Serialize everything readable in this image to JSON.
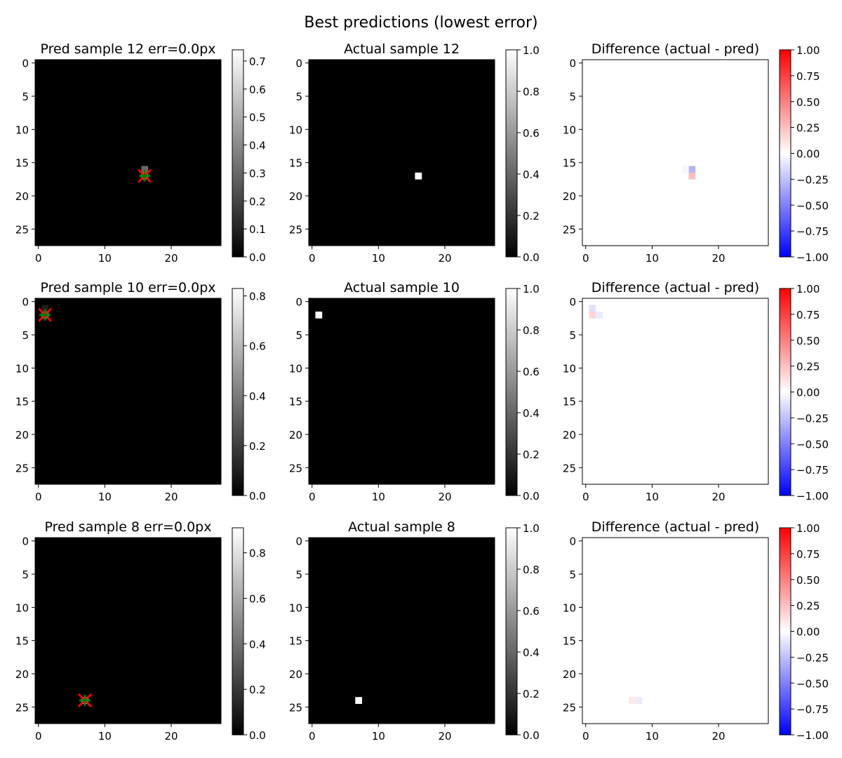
{
  "figure": {
    "suptitle": "Best predictions (lowest error)"
  },
  "colors": {
    "background": "#000000",
    "pixel": "#ffffff",
    "pred_marker": "#ff0000",
    "actual_marker": "#008000",
    "axis": "#000000"
  },
  "chart_data": [
    {
      "type": "heatmap",
      "title": "Pred sample 12  err=0.0px",
      "colormap": "gray",
      "xticks": [
        0,
        10,
        20
      ],
      "yticks": [
        0,
        5,
        10,
        15,
        20,
        25
      ],
      "colorbar": {
        "range": [
          0,
          0.74
        ],
        "ticks": [
          "0.0",
          "0.1",
          "0.2",
          "0.3",
          "0.4",
          "0.5",
          "0.6",
          "0.7"
        ]
      },
      "cells": [
        {
          "x": 16,
          "y": 16,
          "v": 0.3
        },
        {
          "x": 16,
          "y": 17,
          "v": 0.74
        }
      ],
      "markers": [
        {
          "kind": "pred",
          "shape": "x",
          "x": 16,
          "y": 17
        },
        {
          "kind": "actual",
          "shape": "+",
          "x": 16,
          "y": 17
        }
      ]
    },
    {
      "type": "heatmap",
      "title": "Actual sample 12",
      "colormap": "gray",
      "xticks": [
        0,
        10,
        20
      ],
      "yticks": [
        0,
        5,
        10,
        15,
        20,
        25
      ],
      "colorbar": {
        "range": [
          0,
          1
        ],
        "ticks": [
          "0.0",
          "0.2",
          "0.4",
          "0.6",
          "0.8",
          "1.0"
        ]
      },
      "cells": [
        {
          "x": 16,
          "y": 17,
          "v": 1.0
        }
      ],
      "markers": []
    },
    {
      "type": "heatmap",
      "title": "Difference (actual - pred)",
      "colormap": "bwr",
      "xticks": [
        0,
        10,
        20
      ],
      "yticks": [
        0,
        5,
        10,
        15,
        20,
        25
      ],
      "colorbar": {
        "range": [
          -1,
          1
        ],
        "ticks": [
          "−1.00",
          "−0.75",
          "−0.50",
          "−0.25",
          "0.00",
          "0.25",
          "0.50",
          "0.75",
          "1.00"
        ]
      },
      "cells": [
        {
          "x": 16,
          "y": 16,
          "v": -0.3
        },
        {
          "x": 15,
          "y": 16,
          "v": -0.03
        },
        {
          "x": 16,
          "y": 17,
          "v": 0.26
        }
      ],
      "markers": []
    },
    {
      "type": "heatmap",
      "title": "Pred sample 10  err=0.0px",
      "colormap": "gray",
      "xticks": [
        0,
        10,
        20
      ],
      "yticks": [
        0,
        5,
        10,
        15,
        20,
        25
      ],
      "colorbar": {
        "range": [
          0,
          0.83
        ],
        "ticks": [
          "0.0",
          "0.2",
          "0.4",
          "0.6",
          "0.8"
        ]
      },
      "cells": [
        {
          "x": 1,
          "y": 1,
          "v": 0.1
        },
        {
          "x": 1,
          "y": 2,
          "v": 0.83
        }
      ],
      "markers": [
        {
          "kind": "pred",
          "shape": "x",
          "x": 1,
          "y": 2
        },
        {
          "kind": "actual",
          "shape": "+",
          "x": 1,
          "y": 2
        }
      ]
    },
    {
      "type": "heatmap",
      "title": "Actual sample 10",
      "colormap": "gray",
      "xticks": [
        0,
        10,
        20
      ],
      "yticks": [
        0,
        5,
        10,
        15,
        20,
        25
      ],
      "colorbar": {
        "range": [
          0,
          1
        ],
        "ticks": [
          "0.0",
          "0.2",
          "0.4",
          "0.6",
          "0.8",
          "1.0"
        ]
      },
      "cells": [
        {
          "x": 1,
          "y": 2,
          "v": 1.0
        }
      ],
      "markers": []
    },
    {
      "type": "heatmap",
      "title": "Difference (actual - pred)",
      "colormap": "bwr",
      "xticks": [
        0,
        10,
        20
      ],
      "yticks": [
        0,
        5,
        10,
        15,
        20,
        25
      ],
      "colorbar": {
        "range": [
          -1,
          1
        ],
        "ticks": [
          "−1.00",
          "−0.75",
          "−0.50",
          "−0.25",
          "0.00",
          "0.25",
          "0.50",
          "0.75",
          "1.00"
        ]
      },
      "cells": [
        {
          "x": 1,
          "y": 1,
          "v": -0.12
        },
        {
          "x": 1,
          "y": 2,
          "v": 0.17
        },
        {
          "x": 2,
          "y": 2,
          "v": -0.08
        }
      ],
      "markers": []
    },
    {
      "type": "heatmap",
      "title": "Pred sample 8  err=0.0px",
      "colormap": "gray",
      "xticks": [
        0,
        10,
        20
      ],
      "yticks": [
        0,
        5,
        10,
        15,
        20,
        25
      ],
      "colorbar": {
        "range": [
          0,
          0.91
        ],
        "ticks": [
          "0.0",
          "0.2",
          "0.4",
          "0.6",
          "0.8"
        ]
      },
      "cells": [
        {
          "x": 7,
          "y": 24,
          "v": 0.91
        }
      ],
      "markers": [
        {
          "kind": "pred",
          "shape": "x",
          "x": 7,
          "y": 24
        },
        {
          "kind": "actual",
          "shape": "+",
          "x": 7,
          "y": 24
        }
      ]
    },
    {
      "type": "heatmap",
      "title": "Actual sample 8",
      "colormap": "gray",
      "xticks": [
        0,
        10,
        20
      ],
      "yticks": [
        0,
        5,
        10,
        15,
        20,
        25
      ],
      "colorbar": {
        "range": [
          0,
          1
        ],
        "ticks": [
          "0.0",
          "0.2",
          "0.4",
          "0.6",
          "0.8",
          "1.0"
        ]
      },
      "cells": [
        {
          "x": 7,
          "y": 24,
          "v": 1.0
        }
      ],
      "markers": []
    },
    {
      "type": "heatmap",
      "title": "Difference (actual - pred)",
      "colormap": "bwr",
      "xticks": [
        0,
        10,
        20
      ],
      "yticks": [
        0,
        5,
        10,
        15,
        20,
        25
      ],
      "colorbar": {
        "range": [
          -1,
          1
        ],
        "ticks": [
          "−1.00",
          "−0.75",
          "−0.50",
          "−0.25",
          "0.00",
          "0.25",
          "0.50",
          "0.75",
          "1.00"
        ]
      },
      "cells": [
        {
          "x": 7,
          "y": 24,
          "v": 0.09
        },
        {
          "x": 8,
          "y": 24,
          "v": -0.08
        }
      ],
      "markers": []
    }
  ]
}
